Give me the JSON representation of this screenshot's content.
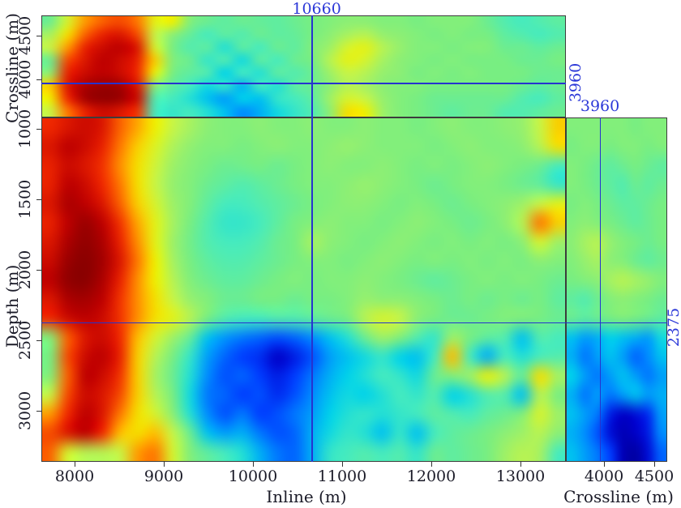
{
  "figure": {
    "background": "#ffffff",
    "text_color": "#1b1b28",
    "annotation_color": "#2c38d8",
    "border_color": "#3c3c3c"
  },
  "axes": {
    "inline": {
      "label": "Inline (m)",
      "ticks": [
        8000,
        9000,
        10000,
        11000,
        12000,
        13000
      ],
      "range": [
        7627,
        13509
      ]
    },
    "depth": {
      "label": "Depth (m)",
      "ticks": [
        1000,
        1500,
        2000,
        2500,
        3000
      ],
      "range": [
        920,
        3362
      ]
    },
    "crossline_left": {
      "label": "Crossline (m)",
      "ticks": [
        4000,
        4500
      ],
      "range": [
        3573,
        4727
      ]
    },
    "crossline_bottom": {
      "label": "Crossline (m)",
      "ticks": [
        4000,
        4500
      ],
      "range": [
        3621,
        4629
      ]
    }
  },
  "crosshair": {
    "inline": {
      "label": "10660",
      "value": 10660
    },
    "crossline": {
      "label": "3960",
      "value": 3960
    },
    "depth": {
      "label": "2375",
      "value": 2375
    }
  },
  "colormap": {
    "stops": [
      [
        0,
        "#000082"
      ],
      [
        8,
        "#0000c8"
      ],
      [
        16,
        "#003cff"
      ],
      [
        24,
        "#008cff"
      ],
      [
        32,
        "#00d2eb"
      ],
      [
        40,
        "#46ebbe"
      ],
      [
        48,
        "#78ee82"
      ],
      [
        54,
        "#96f06e"
      ],
      [
        60,
        "#c8f546"
      ],
      [
        66,
        "#f0f000"
      ],
      [
        72,
        "#ffbe00"
      ],
      [
        78,
        "#ff7800"
      ],
      [
        85,
        "#f02800"
      ],
      [
        92,
        "#be0000"
      ],
      [
        100,
        "#780000"
      ]
    ]
  },
  "chart_data": [
    {
      "name": "depth-slice-map-view",
      "type": "heatmap",
      "x_axis": "Inline (m)",
      "x_range": [
        7627,
        13509
      ],
      "y_axis": "Crossline (m)",
      "y_range_top_to_bottom": [
        4727,
        3573
      ],
      "units": "normalized amplitude 0-100 (no colorbar shown)",
      "values": [
        [
          46,
          62,
          75,
          80,
          82,
          78,
          64,
          66,
          50,
          46,
          44,
          46,
          45,
          44,
          46,
          48,
          50,
          52,
          52,
          50,
          50,
          48,
          50,
          50,
          50,
          46,
          42,
          40,
          42,
          44
        ],
        [
          56,
          68,
          80,
          86,
          88,
          82,
          60,
          52,
          45,
          40,
          44,
          42,
          46,
          44,
          45,
          48,
          52,
          56,
          58,
          54,
          52,
          50,
          48,
          50,
          48,
          48,
          44,
          42,
          40,
          42
        ],
        [
          60,
          75,
          86,
          90,
          92,
          88,
          62,
          48,
          42,
          44,
          36,
          44,
          40,
          46,
          44,
          50,
          55,
          62,
          64,
          58,
          54,
          50,
          50,
          48,
          50,
          50,
          46,
          46,
          44,
          46
        ],
        [
          46,
          82,
          88,
          92,
          90,
          86,
          70,
          50,
          46,
          38,
          42,
          34,
          44,
          40,
          46,
          48,
          58,
          64,
          62,
          56,
          52,
          50,
          48,
          50,
          48,
          48,
          48,
          46,
          46,
          48
        ],
        [
          52,
          86,
          90,
          92,
          90,
          85,
          65,
          48,
          44,
          42,
          32,
          40,
          36,
          44,
          42,
          46,
          55,
          60,
          58,
          54,
          52,
          48,
          50,
          48,
          50,
          48,
          48,
          48,
          46,
          46
        ],
        [
          70,
          88,
          94,
          96,
          95,
          88,
          52,
          44,
          40,
          34,
          38,
          28,
          40,
          36,
          44,
          46,
          52,
          58,
          56,
          52,
          50,
          50,
          48,
          48,
          48,
          48,
          48,
          46,
          44,
          46
        ],
        [
          66,
          85,
          95,
          97,
          96,
          90,
          42,
          40,
          36,
          30,
          26,
          32,
          30,
          38,
          40,
          44,
          55,
          62,
          60,
          54,
          50,
          48,
          46,
          46,
          46,
          46,
          46,
          42,
          40,
          44
        ],
        [
          60,
          78,
          86,
          90,
          88,
          84,
          40,
          38,
          40,
          36,
          30,
          24,
          28,
          34,
          38,
          42,
          52,
          68,
          66,
          55,
          50,
          48,
          46,
          44,
          46,
          46,
          42,
          42,
          44,
          46
        ]
      ]
    },
    {
      "name": "inline-depth-section",
      "type": "heatmap",
      "x_axis": "Inline (m)",
      "x_range": [
        7627,
        13509
      ],
      "y_axis": "Depth (m)",
      "y_range_top_to_bottom": [
        920,
        3362
      ],
      "units": "normalized amplitude 0-100 (no colorbar shown)",
      "values": [
        [
          85,
          88,
          90,
          88,
          80,
          74,
          66,
          60,
          56,
          52,
          50,
          50,
          52,
          50,
          50,
          52,
          50,
          50,
          52,
          50,
          50,
          48,
          50,
          52,
          50,
          50,
          52,
          54,
          60,
          70
        ],
        [
          88,
          92,
          90,
          86,
          78,
          70,
          63,
          57,
          53,
          50,
          50,
          48,
          50,
          52,
          50,
          50,
          52,
          54,
          52,
          50,
          50,
          50,
          48,
          50,
          52,
          50,
          50,
          52,
          58,
          68
        ],
        [
          86,
          90,
          88,
          84,
          76,
          68,
          61,
          55,
          51,
          48,
          46,
          47,
          48,
          46,
          48,
          50,
          52,
          50,
          50,
          52,
          50,
          48,
          50,
          48,
          50,
          52,
          50,
          48,
          46,
          40
        ],
        [
          86,
          92,
          90,
          85,
          78,
          68,
          60,
          54,
          50,
          46,
          44,
          42,
          44,
          46,
          48,
          50,
          50,
          52,
          54,
          52,
          50,
          48,
          46,
          48,
          50,
          50,
          48,
          46,
          44,
          38
        ],
        [
          88,
          94,
          92,
          88,
          80,
          70,
          62,
          55,
          50,
          44,
          40,
          40,
          42,
          44,
          46,
          48,
          50,
          52,
          52,
          50,
          48,
          50,
          48,
          46,
          48,
          50,
          52,
          55,
          60,
          64
        ],
        [
          86,
          92,
          96,
          92,
          84,
          74,
          64,
          56,
          48,
          42,
          38,
          38,
          40,
          44,
          48,
          50,
          52,
          50,
          50,
          48,
          50,
          52,
          50,
          48,
          46,
          48,
          52,
          58,
          78,
          70
        ],
        [
          88,
          94,
          97,
          94,
          86,
          76,
          64,
          55,
          47,
          42,
          40,
          40,
          42,
          46,
          48,
          56,
          52,
          50,
          48,
          50,
          52,
          50,
          48,
          50,
          48,
          50,
          48,
          52,
          62,
          55
        ],
        [
          90,
          96,
          98,
          95,
          88,
          78,
          66,
          56,
          48,
          44,
          42,
          42,
          44,
          46,
          48,
          50,
          50,
          48,
          50,
          52,
          50,
          48,
          50,
          48,
          50,
          48,
          50,
          48,
          52,
          50
        ],
        [
          92,
          97,
          98,
          94,
          86,
          76,
          66,
          58,
          50,
          46,
          44,
          44,
          46,
          48,
          50,
          48,
          50,
          50,
          52,
          50,
          48,
          46,
          44,
          46,
          48,
          50,
          48,
          50,
          48,
          46
        ],
        [
          88,
          94,
          95,
          92,
          84,
          76,
          68,
          60,
          54,
          50,
          46,
          46,
          48,
          48,
          46,
          48,
          48,
          50,
          54,
          52,
          52,
          50,
          48,
          46,
          48,
          46,
          48,
          46,
          48,
          44
        ],
        [
          85,
          90,
          92,
          90,
          84,
          76,
          68,
          64,
          58,
          48,
          42,
          40,
          40,
          42,
          42,
          44,
          46,
          48,
          58,
          62,
          60,
          52,
          48,
          46,
          46,
          48,
          50,
          50,
          48,
          46
        ],
        [
          50,
          80,
          88,
          90,
          85,
          72,
          62,
          55,
          45,
          30,
          25,
          22,
          20,
          18,
          20,
          24,
          30,
          36,
          46,
          55,
          50,
          42,
          38,
          55,
          48,
          44,
          42,
          30,
          42,
          40
        ],
        [
          48,
          82,
          90,
          92,
          86,
          70,
          58,
          48,
          38,
          26,
          20,
          16,
          14,
          8,
          12,
          18,
          26,
          30,
          34,
          38,
          32,
          30,
          40,
          72,
          40,
          28,
          40,
          36,
          40,
          42
        ],
        [
          50,
          80,
          92,
          90,
          84,
          70,
          56,
          46,
          36,
          24,
          18,
          20,
          16,
          12,
          16,
          22,
          28,
          32,
          36,
          40,
          38,
          34,
          46,
          50,
          55,
          65,
          58,
          45,
          68,
          56
        ],
        [
          60,
          82,
          90,
          88,
          82,
          70,
          58,
          48,
          34,
          22,
          20,
          16,
          18,
          14,
          18,
          24,
          30,
          34,
          32,
          36,
          40,
          38,
          42,
          32,
          36,
          42,
          42,
          30,
          58,
          48
        ],
        [
          75,
          85,
          92,
          88,
          78,
          68,
          62,
          52,
          36,
          24,
          18,
          22,
          16,
          18,
          22,
          26,
          32,
          36,
          38,
          36,
          38,
          40,
          44,
          42,
          40,
          44,
          46,
          50,
          62,
          55
        ],
        [
          82,
          88,
          92,
          85,
          72,
          68,
          72,
          60,
          46,
          30,
          26,
          28,
          22,
          18,
          20,
          28,
          34,
          38,
          36,
          30,
          38,
          30,
          40,
          44,
          46,
          48,
          52,
          55,
          58,
          52
        ],
        [
          80,
          62,
          58,
          58,
          60,
          75,
          78,
          62,
          50,
          44,
          40,
          36,
          28,
          22,
          20,
          28,
          38,
          40,
          42,
          40,
          42,
          38,
          46,
          44,
          46,
          48,
          55,
          58,
          56,
          40
        ]
      ]
    },
    {
      "name": "crossline-depth-section",
      "type": "heatmap",
      "x_axis": "Crossline (m)",
      "x_range": [
        3621,
        4629
      ],
      "y_axis": "Depth (m)",
      "y_range_top_to_bottom": [
        920,
        3362
      ],
      "units": "normalized amplitude 0-100 (no colorbar shown)",
      "values": [
        [
          50,
          50,
          50,
          50,
          50,
          48,
          50,
          50
        ],
        [
          48,
          50,
          50,
          48,
          50,
          50,
          48,
          50
        ],
        [
          50,
          48,
          46,
          44,
          46,
          48,
          46,
          44
        ],
        [
          50,
          48,
          46,
          44,
          42,
          46,
          44,
          46
        ],
        [
          48,
          50,
          48,
          46,
          44,
          44,
          46,
          48
        ],
        [
          50,
          52,
          50,
          48,
          46,
          44,
          46,
          48
        ],
        [
          52,
          56,
          58,
          54,
          50,
          48,
          46,
          48
        ],
        [
          50,
          54,
          56,
          52,
          50,
          46,
          44,
          46
        ],
        [
          48,
          50,
          52,
          56,
          58,
          56,
          54,
          50
        ],
        [
          44,
          42,
          46,
          50,
          52,
          50,
          48,
          46
        ],
        [
          46,
          44,
          46,
          48,
          50,
          48,
          46,
          44
        ],
        [
          30,
          26,
          28,
          32,
          30,
          28,
          26,
          34
        ],
        [
          28,
          22,
          26,
          30,
          26,
          20,
          24,
          30
        ],
        [
          32,
          26,
          22,
          26,
          30,
          26,
          22,
          26
        ],
        [
          28,
          22,
          26,
          22,
          26,
          30,
          26,
          28
        ],
        [
          30,
          26,
          22,
          12,
          8,
          10,
          14,
          26
        ],
        [
          28,
          24,
          18,
          10,
          6,
          8,
          12,
          24
        ],
        [
          30,
          26,
          22,
          16,
          6,
          4,
          10,
          20
        ]
      ]
    }
  ]
}
